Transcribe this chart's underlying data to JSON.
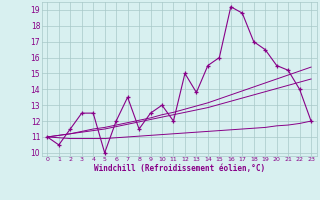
{
  "xlabel": "Windchill (Refroidissement éolien,°C)",
  "x_values": [
    0,
    1,
    2,
    3,
    4,
    5,
    6,
    7,
    8,
    9,
    10,
    11,
    12,
    13,
    14,
    15,
    16,
    17,
    18,
    19,
    20,
    21,
    22,
    23
  ],
  "y_main": [
    11,
    10.5,
    11.5,
    12.5,
    12.5,
    10,
    12,
    13.5,
    11.5,
    12.5,
    13,
    12,
    15,
    13.8,
    15.5,
    16,
    19.2,
    18.8,
    17,
    16.5,
    15.5,
    15.2,
    14,
    12
  ],
  "y_reg1": [
    11.0,
    11.1,
    11.2,
    11.3,
    11.4,
    11.5,
    11.65,
    11.8,
    11.95,
    12.1,
    12.25,
    12.4,
    12.55,
    12.7,
    12.85,
    13.05,
    13.25,
    13.45,
    13.65,
    13.85,
    14.05,
    14.25,
    14.45,
    14.65
  ],
  "y_reg2": [
    11.0,
    11.1,
    11.2,
    11.35,
    11.5,
    11.6,
    11.75,
    11.9,
    12.05,
    12.2,
    12.4,
    12.55,
    12.75,
    12.95,
    13.15,
    13.4,
    13.65,
    13.9,
    14.15,
    14.4,
    14.65,
    14.9,
    15.15,
    15.4
  ],
  "y_reg3": [
    11.0,
    10.95,
    10.9,
    10.9,
    10.9,
    10.9,
    10.95,
    11.0,
    11.05,
    11.1,
    11.15,
    11.2,
    11.25,
    11.3,
    11.35,
    11.4,
    11.45,
    11.5,
    11.55,
    11.6,
    11.7,
    11.75,
    11.85,
    12.0
  ],
  "main_color": "#880088",
  "reg_color": "#880088",
  "bg_color": "#d8f0f0",
  "grid_color": "#a8c8c8",
  "tick_color": "#880088",
  "xlabel_color": "#880088",
  "xlim": [
    -0.5,
    23.5
  ],
  "ylim": [
    9.8,
    19.5
  ],
  "yticks": [
    10,
    11,
    12,
    13,
    14,
    15,
    16,
    17,
    18,
    19
  ],
  "xticks": [
    0,
    1,
    2,
    3,
    4,
    5,
    6,
    7,
    8,
    9,
    10,
    11,
    12,
    13,
    14,
    15,
    16,
    17,
    18,
    19,
    20,
    21,
    22,
    23
  ]
}
